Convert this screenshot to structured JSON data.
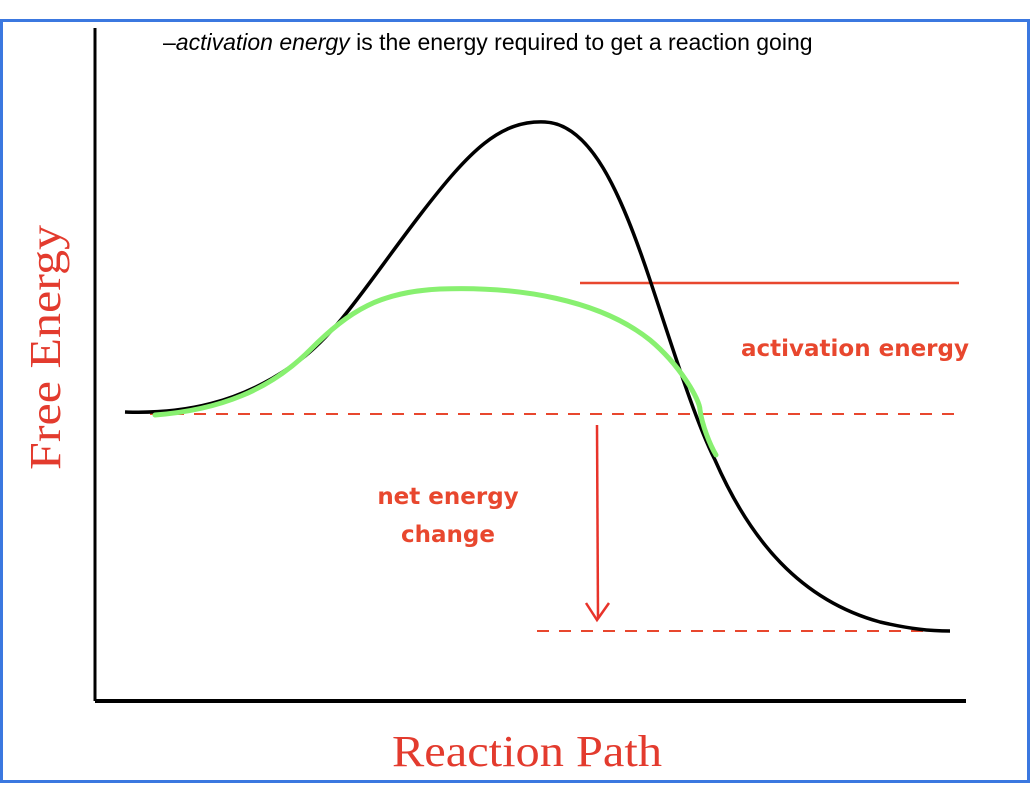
{
  "caption": {
    "prefix": "–",
    "term": "activation energy",
    "rest": " is the energy required to get a reaction going"
  },
  "axes": {
    "y_label": "Free Energy",
    "x_label": "Reaction Path"
  },
  "annotations": {
    "activation_energy": "activation energy",
    "net_energy_line1": "net energy",
    "net_energy_line2": "change"
  },
  "colors": {
    "frame": "#3b78e0",
    "uncatalyzed_curve": "#000000",
    "catalyzed_curve": "#88f070",
    "annotation": "#e8472e",
    "axis_title": "#e33b2e"
  }
}
